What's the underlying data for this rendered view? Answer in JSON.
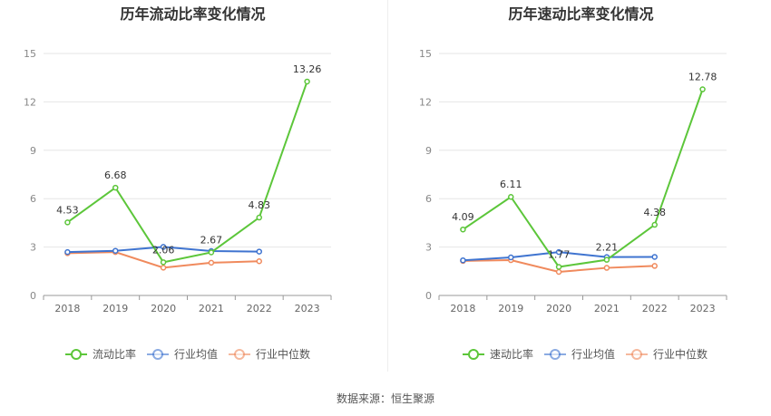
{
  "source_text": "数据来源：恒生聚源",
  "colors": {
    "main": "#5cc63a",
    "avg": "#3f74d0",
    "median": "#f08a5d"
  },
  "chart_data": [
    {
      "type": "line",
      "title": "历年流动比率变化情况",
      "categories": [
        "2018",
        "2019",
        "2020",
        "2021",
        "2022",
        "2023"
      ],
      "ylim": [
        0,
        15
      ],
      "yticks": [
        0,
        3,
        6,
        9,
        12,
        15
      ],
      "grid": true,
      "legend_position": "bottom",
      "series": [
        {
          "name": "流动比率",
          "values": [
            4.53,
            6.68,
            2.06,
            2.67,
            4.83,
            13.26
          ],
          "labels": [
            "4.53",
            "6.68",
            "2.06",
            "2.67",
            "4.83",
            "13.26"
          ]
        },
        {
          "name": "行业均值",
          "values": [
            2.69,
            2.77,
            3.01,
            2.75,
            2.72,
            null
          ]
        },
        {
          "name": "行业中位数",
          "values": [
            2.62,
            2.69,
            1.72,
            2.03,
            2.12,
            null
          ]
        }
      ]
    },
    {
      "type": "line",
      "title": "历年速动比率变化情况",
      "categories": [
        "2018",
        "2019",
        "2020",
        "2021",
        "2022",
        "2023"
      ],
      "ylim": [
        0,
        15
      ],
      "yticks": [
        0,
        3,
        6,
        9,
        12,
        15
      ],
      "grid": true,
      "legend_position": "bottom",
      "series": [
        {
          "name": "速动比率",
          "values": [
            4.09,
            6.11,
            1.77,
            2.21,
            4.38,
            12.78
          ],
          "labels": [
            "4.09",
            "6.11",
            "1.77",
            "2.21",
            "4.38",
            "12.78"
          ]
        },
        {
          "name": "行业均值",
          "values": [
            2.18,
            2.36,
            2.69,
            2.38,
            2.39,
            null
          ]
        },
        {
          "name": "行业中位数",
          "values": [
            2.14,
            2.19,
            1.46,
            1.71,
            1.83,
            null
          ]
        }
      ]
    }
  ]
}
